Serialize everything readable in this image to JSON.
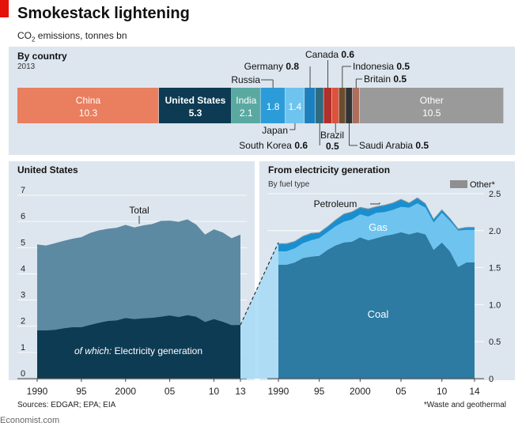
{
  "header": {
    "title": "Smokestack lightening",
    "subtitle_prefix": "CO",
    "subtitle_sub": "2",
    "subtitle_suffix": " emissions, tonnes bn"
  },
  "by_country": {
    "label": "By country",
    "year": "2013"
  },
  "panels": {
    "us_title": "United States",
    "elec_title": "From electricity generation",
    "elec_subtitle": "By fuel type"
  },
  "footer": {
    "source": "Sources: EDGAR; EPA; EIA",
    "note": "*Waste and geothermal",
    "logo": "Economist.com"
  },
  "colors": {
    "china": "#e97f5f",
    "us": "#0d3b53",
    "india": "#5aa9a1",
    "germany": "#1c80bf",
    "russia": "#2b9cd8",
    "japan": "#6ec4ef",
    "southkorea": "#2f6b7f",
    "canada": "#b0302b",
    "brazil": "#e0503a",
    "indonesia": "#6a4d2f",
    "saudi": "#333333",
    "britain": "#b06e5a",
    "other": "#9a9a9a",
    "us_total": "#5d8aa3",
    "us_elec": "#0d3b53",
    "coal": "#2d7aa3",
    "gas": "#6ec4ef",
    "petroleum": "#1a8fd0",
    "fuel_other": "#8f8f8f",
    "connector": "#a6d9f4"
  },
  "chart_data": [
    {
      "type": "bar",
      "title": "By country",
      "subtitle": "2013",
      "categories": [
        "China",
        "United States",
        "India",
        "Russia",
        "Japan",
        "Germany",
        "South Korea",
        "Canada",
        "Brazil",
        "Indonesia",
        "Saudi Arabia",
        "Britain",
        "Other"
      ],
      "values": [
        10.3,
        5.3,
        2.1,
        1.8,
        1.4,
        0.8,
        0.6,
        0.6,
        0.5,
        0.5,
        0.5,
        0.5,
        10.5
      ],
      "labels": [
        "China",
        "United States",
        "India",
        "",
        "",
        "Germany",
        "South Korea",
        "Canada",
        "Brazil",
        "Indonesia",
        "Saudi Arabia",
        "Britain",
        "Other"
      ],
      "value_labels": [
        "10.3",
        "5.3",
        "2.1",
        "1.8",
        "1.4",
        "0.8",
        "0.6",
        "0.6",
        "0.5",
        "0.5",
        "0.5",
        "0.5",
        "10.5"
      ],
      "callouts": {
        "russia": "Russia",
        "japan": "Japan"
      }
    },
    {
      "type": "area",
      "title": "United States",
      "x": [
        1990,
        1991,
        1992,
        1993,
        1994,
        1995,
        1996,
        1997,
        1998,
        1999,
        2000,
        2001,
        2002,
        2003,
        2004,
        2005,
        2006,
        2007,
        2008,
        2009,
        2010,
        2011,
        2012,
        2013
      ],
      "series": [
        {
          "name": "Total",
          "values": [
            5.12,
            5.08,
            5.17,
            5.26,
            5.34,
            5.4,
            5.56,
            5.66,
            5.72,
            5.76,
            5.87,
            5.77,
            5.85,
            5.9,
            6.02,
            6.03,
            5.99,
            6.08,
            5.88,
            5.5,
            5.7,
            5.58,
            5.36,
            5.5
          ]
        },
        {
          "name": "of which: Electricity generation",
          "values": [
            1.84,
            1.84,
            1.86,
            1.92,
            1.96,
            1.96,
            2.05,
            2.13,
            2.2,
            2.22,
            2.31,
            2.27,
            2.3,
            2.32,
            2.36,
            2.41,
            2.35,
            2.42,
            2.36,
            2.16,
            2.27,
            2.17,
            2.04,
            2.05
          ]
        }
      ],
      "annotation_total": "Total",
      "annotation_elec_italic": "of which:",
      "annotation_elec_rest": " Electricity generation",
      "ylim": [
        0,
        7
      ],
      "yticks": [
        "0",
        "1",
        "2",
        "3",
        "4",
        "5",
        "6",
        "7"
      ],
      "xticks": [
        "1990",
        "95",
        "2000",
        "05",
        "10",
        "13"
      ]
    },
    {
      "type": "area",
      "title": "From electricity generation",
      "subtitle": "By fuel type",
      "x": [
        1990,
        1991,
        1992,
        1993,
        1994,
        1995,
        1996,
        1997,
        1998,
        1999,
        2000,
        2001,
        2002,
        2003,
        2004,
        2005,
        2006,
        2007,
        2008,
        2009,
        2010,
        2011,
        2012,
        2013,
        2014
      ],
      "series": [
        {
          "name": "Coal",
          "values": [
            1.54,
            1.54,
            1.57,
            1.63,
            1.65,
            1.66,
            1.74,
            1.8,
            1.84,
            1.85,
            1.91,
            1.87,
            1.9,
            1.93,
            1.95,
            1.98,
            1.95,
            1.98,
            1.95,
            1.74,
            1.84,
            1.72,
            1.51,
            1.57,
            1.57
          ]
        },
        {
          "name": "Gas",
          "values": [
            0.18,
            0.18,
            0.19,
            0.2,
            0.22,
            0.24,
            0.24,
            0.26,
            0.28,
            0.3,
            0.31,
            0.32,
            0.34,
            0.32,
            0.33,
            0.34,
            0.36,
            0.39,
            0.36,
            0.37,
            0.4,
            0.41,
            0.49,
            0.44,
            0.44
          ]
        },
        {
          "name": "Petroleum",
          "values": [
            0.1,
            0.1,
            0.09,
            0.09,
            0.09,
            0.07,
            0.07,
            0.08,
            0.1,
            0.1,
            0.09,
            0.1,
            0.08,
            0.09,
            0.09,
            0.1,
            0.06,
            0.07,
            0.05,
            0.04,
            0.04,
            0.03,
            0.02,
            0.03,
            0.03
          ]
        },
        {
          "name": "Other*",
          "values": [
            0.01,
            0.01,
            0.01,
            0.01,
            0.01,
            0.01,
            0.01,
            0.01,
            0.01,
            0.01,
            0.01,
            0.01,
            0.01,
            0.01,
            0.01,
            0.01,
            0.01,
            0.01,
            0.01,
            0.01,
            0.01,
            0.01,
            0.01,
            0.01,
            0.01
          ]
        }
      ],
      "ylim": [
        0,
        2.5
      ],
      "yticks": [
        "0",
        "0.5",
        "1.0",
        "1.5",
        "2.0",
        "2.5"
      ],
      "xticks": [
        "1990",
        "95",
        "2000",
        "05",
        "10",
        "14"
      ]
    }
  ]
}
